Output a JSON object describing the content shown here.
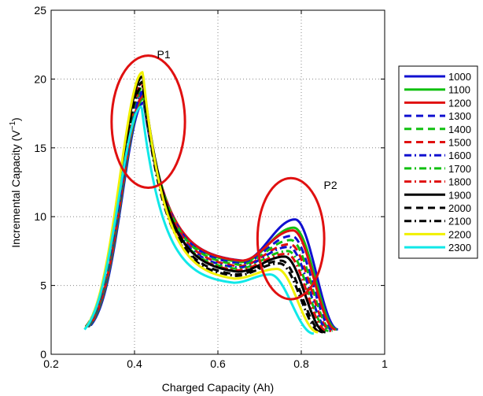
{
  "chart_data": {
    "type": "line",
    "title": "",
    "xlabel": "Charged Capacity (Ah)",
    "ylabel_main": "Incremental Capacity (V",
    "ylabel_sup": "−1",
    "ylabel_end": ")",
    "xlim": [
      0.2,
      1.0
    ],
    "ylim": [
      0,
      25
    ],
    "xticks": [
      0.2,
      0.4,
      0.6,
      0.8,
      1.0
    ],
    "xtick_labels": [
      "0.2",
      "0.4",
      "0.6",
      "0.8",
      "1"
    ],
    "yticks": [
      0,
      5,
      10,
      15,
      20,
      25
    ],
    "ytick_labels": [
      "0",
      "5",
      "10",
      "15",
      "20",
      "25"
    ],
    "grid": true,
    "legend_position": "right",
    "annotations": [
      {
        "text": "P1",
        "x": 0.47,
        "y": 21.5
      },
      {
        "text": "P2",
        "x": 0.87,
        "y": 12.0
      }
    ],
    "ellipses": [
      {
        "label": "P1",
        "cx": 0.433,
        "cy": 16.9,
        "rx": 0.088,
        "ry": 4.8,
        "color": "#e01010"
      },
      {
        "label": "P2",
        "cx": 0.775,
        "cy": 8.4,
        "rx": 0.08,
        "ry": 4.4,
        "color": "#e01010"
      }
    ],
    "series": [
      {
        "name": "1000",
        "color": "#1010d0",
        "dash": "solid",
        "p": {
          "x0": 0.295,
          "y0": 2.1,
          "xp1": 0.422,
          "yp1": 18.3,
          "xv": 0.66,
          "yv": 6.8,
          "xp2": 0.785,
          "yp2": 9.8,
          "xe": 0.888,
          "ye": 1.8
        }
      },
      {
        "name": "1100",
        "color": "#10c010",
        "dash": "solid",
        "p": {
          "x0": 0.293,
          "y0": 2.1,
          "xp1": 0.422,
          "yp1": 18.6,
          "xv": 0.658,
          "yv": 6.7,
          "xp2": 0.782,
          "yp2": 9.2,
          "xe": 0.885,
          "ye": 1.8
        }
      },
      {
        "name": "1200",
        "color": "#e01010",
        "dash": "solid",
        "p": {
          "x0": 0.292,
          "y0": 2.1,
          "xp1": 0.422,
          "yp1": 18.8,
          "xv": 0.656,
          "yv": 6.8,
          "xp2": 0.78,
          "yp2": 9.0,
          "xe": 0.882,
          "ye": 1.8
        }
      },
      {
        "name": "1300",
        "color": "#1010d0",
        "dash": "dash",
        "p": {
          "x0": 0.29,
          "y0": 2.0,
          "xp1": 0.422,
          "yp1": 19.0,
          "xv": 0.655,
          "yv": 6.6,
          "xp2": 0.777,
          "yp2": 8.6,
          "xe": 0.878,
          "ye": 1.7
        }
      },
      {
        "name": "1400",
        "color": "#10c010",
        "dash": "dash",
        "p": {
          "x0": 0.289,
          "y0": 2.0,
          "xp1": 0.422,
          "yp1": 19.3,
          "xv": 0.652,
          "yv": 6.5,
          "xp2": 0.775,
          "yp2": 8.3,
          "xe": 0.875,
          "ye": 1.7
        }
      },
      {
        "name": "1500",
        "color": "#e01010",
        "dash": "dash",
        "p": {
          "x0": 0.288,
          "y0": 2.0,
          "xp1": 0.421,
          "yp1": 19.5,
          "xv": 0.65,
          "yv": 6.4,
          "xp2": 0.773,
          "yp2": 8.0,
          "xe": 0.872,
          "ye": 1.7
        }
      },
      {
        "name": "1600",
        "color": "#1010d0",
        "dash": "dashdot",
        "p": {
          "x0": 0.287,
          "y0": 2.0,
          "xp1": 0.421,
          "yp1": 19.1,
          "xv": 0.648,
          "yv": 6.3,
          "xp2": 0.77,
          "yp2": 7.8,
          "xe": 0.868,
          "ye": 1.7
        }
      },
      {
        "name": "1700",
        "color": "#10c010",
        "dash": "dashdot",
        "p": {
          "x0": 0.286,
          "y0": 2.0,
          "xp1": 0.42,
          "yp1": 19.4,
          "xv": 0.646,
          "yv": 6.2,
          "xp2": 0.768,
          "yp2": 7.5,
          "xe": 0.865,
          "ye": 1.7
        }
      },
      {
        "name": "1800",
        "color": "#e01010",
        "dash": "dashdot",
        "p": {
          "x0": 0.285,
          "y0": 2.0,
          "xp1": 0.42,
          "yp1": 19.7,
          "xv": 0.645,
          "yv": 6.1,
          "xp2": 0.765,
          "yp2": 7.3,
          "xe": 0.862,
          "ye": 1.7
        }
      },
      {
        "name": "1900",
        "color": "#000000",
        "dash": "solid",
        "p": {
          "x0": 0.285,
          "y0": 2.0,
          "xp1": 0.42,
          "yp1": 20.2,
          "xv": 0.648,
          "yv": 6.0,
          "xp2": 0.76,
          "yp2": 7.1,
          "xe": 0.858,
          "ye": 1.6
        }
      },
      {
        "name": "2000",
        "color": "#000000",
        "dash": "dash",
        "p": {
          "x0": 0.284,
          "y0": 2.0,
          "xp1": 0.42,
          "yp1": 19.8,
          "xv": 0.645,
          "yv": 5.8,
          "xp2": 0.752,
          "yp2": 6.8,
          "xe": 0.852,
          "ye": 1.6
        }
      },
      {
        "name": "2100",
        "color": "#000000",
        "dash": "dashdot",
        "p": {
          "x0": 0.283,
          "y0": 2.0,
          "xp1": 0.42,
          "yp1": 19.5,
          "xv": 0.642,
          "yv": 5.7,
          "xp2": 0.748,
          "yp2": 6.6,
          "xe": 0.848,
          "ye": 1.6
        }
      },
      {
        "name": "2200",
        "color": "#f0f000",
        "dash": "solid",
        "p": {
          "x0": 0.282,
          "y0": 1.9,
          "xp1": 0.42,
          "yp1": 20.5,
          "xv": 0.64,
          "yv": 5.5,
          "xp2": 0.742,
          "yp2": 6.2,
          "xe": 0.84,
          "ye": 1.6
        }
      },
      {
        "name": "2300",
        "color": "#10e8e8",
        "dash": "solid",
        "p": {
          "x0": 0.28,
          "y0": 1.8,
          "xp1": 0.417,
          "yp1": 18.0,
          "xv": 0.638,
          "yv": 5.2,
          "xp2": 0.725,
          "yp2": 5.8,
          "xe": 0.83,
          "ye": 1.5
        }
      }
    ]
  }
}
